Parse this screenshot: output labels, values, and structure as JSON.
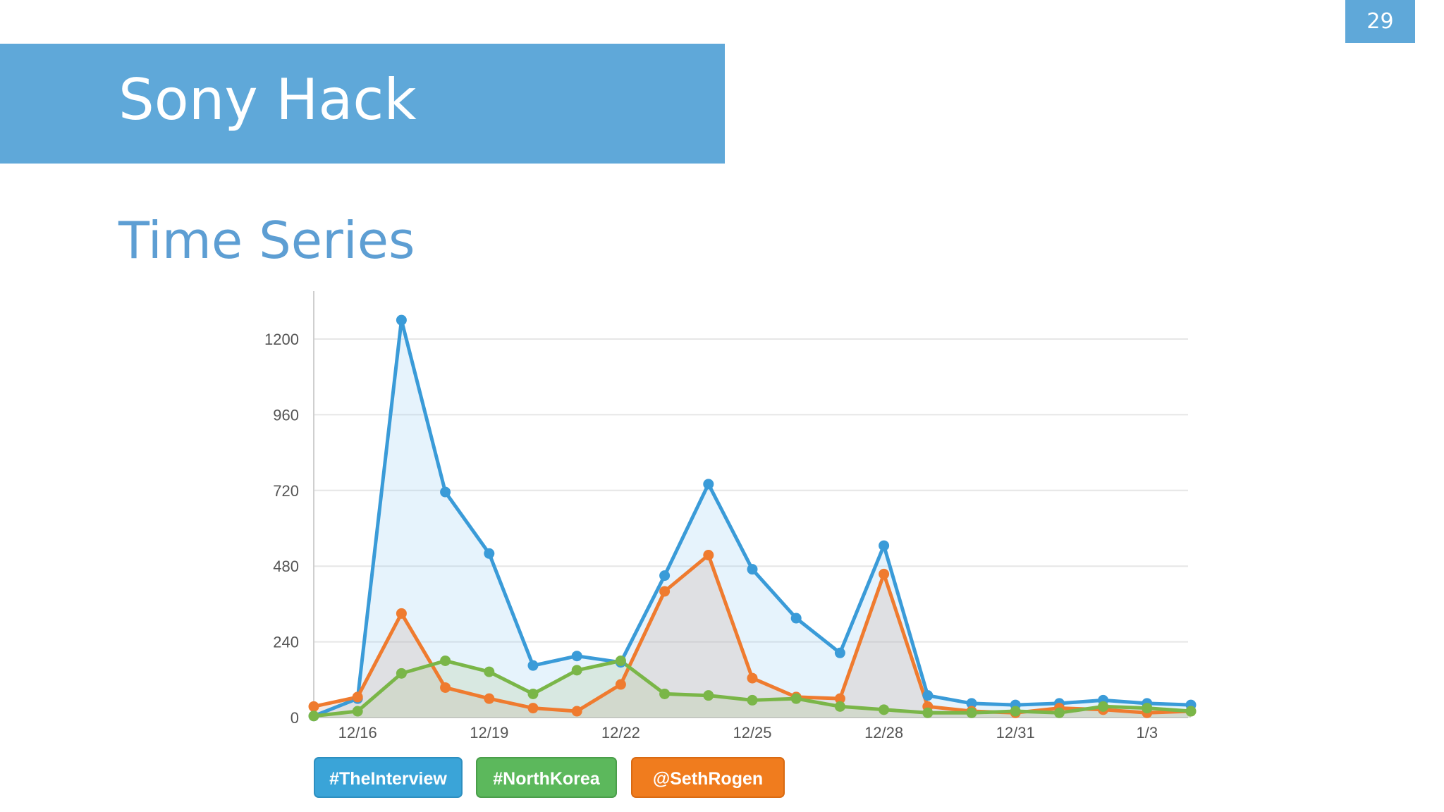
{
  "slide": {
    "page_number": "29",
    "title": "Sony Hack",
    "subtitle": "Time Series"
  },
  "chart_data": {
    "type": "area",
    "x": [
      "12/15",
      "12/16",
      "12/17",
      "12/18",
      "12/19",
      "12/20",
      "12/21",
      "12/22",
      "12/23",
      "12/24",
      "12/25",
      "12/26",
      "12/27",
      "12/28",
      "12/29",
      "12/30",
      "12/31",
      "1/1",
      "1/2",
      "1/3",
      "1/4"
    ],
    "x_tick_labels": [
      "12/16",
      "12/19",
      "12/22",
      "12/25",
      "12/28",
      "12/31",
      "1/3"
    ],
    "y_ticks": [
      0,
      240,
      480,
      720,
      960,
      1200
    ],
    "ylim": [
      0,
      1200
    ],
    "grid": true,
    "legend_position": "bottom-left",
    "series": [
      {
        "name": "#TheInterview",
        "color": "#3a9bd8",
        "values": [
          5,
          60,
          1260,
          715,
          520,
          165,
          195,
          175,
          450,
          740,
          470,
          315,
          205,
          545,
          70,
          45,
          40,
          45,
          55,
          45,
          40
        ]
      },
      {
        "name": "@SethRogen",
        "color": "#ef7b2f",
        "values": [
          35,
          65,
          330,
          95,
          60,
          30,
          20,
          105,
          400,
          515,
          125,
          65,
          60,
          455,
          35,
          20,
          15,
          30,
          25,
          15,
          20
        ]
      },
      {
        "name": "#NorthKorea",
        "color": "#7ab648",
        "values": [
          5,
          20,
          140,
          180,
          145,
          75,
          150,
          180,
          75,
          70,
          55,
          60,
          35,
          25,
          15,
          15,
          20,
          15,
          35,
          30,
          20
        ]
      }
    ],
    "legend": [
      {
        "label": "#TheInterview",
        "color": "#3aa4d8"
      },
      {
        "label": "#NorthKorea",
        "color": "#5cb85c"
      },
      {
        "label": "@SethRogen",
        "color": "#f07c1e"
      }
    ]
  }
}
